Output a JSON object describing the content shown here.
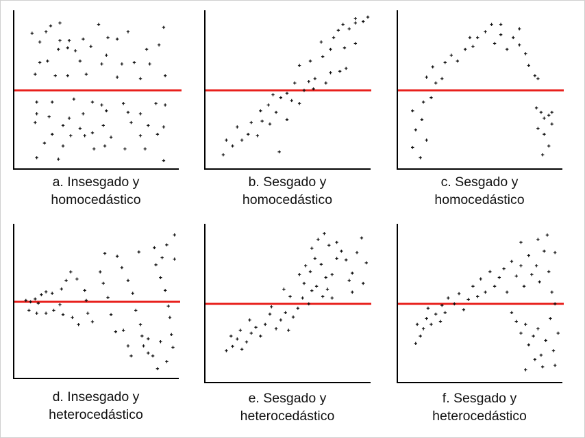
{
  "figure": {
    "background": "#ffffff",
    "axis_color": "#000000",
    "line_color": "#e8201c",
    "point_color": "#111111"
  },
  "chart_data": [
    {
      "type": "scatter",
      "caption": [
        "a. Insesgado y",
        "homocedástico"
      ],
      "reference_y": 0.5,
      "xlim": [
        0,
        1
      ],
      "ylim": [
        0,
        1
      ],
      "grid": false,
      "points": [
        [
          0.19,
          0.94
        ],
        [
          0.25,
          0.96
        ],
        [
          0.5,
          0.95
        ],
        [
          0.92,
          0.93
        ],
        [
          0.69,
          0.9
        ],
        [
          0.16,
          0.9
        ],
        [
          0.07,
          0.89
        ],
        [
          0.12,
          0.83
        ],
        [
          0.25,
          0.84
        ],
        [
          0.31,
          0.84
        ],
        [
          0.4,
          0.85
        ],
        [
          0.56,
          0.86
        ],
        [
          0.62,
          0.85
        ],
        [
          0.89,
          0.81
        ],
        [
          0.24,
          0.78
        ],
        [
          0.3,
          0.79
        ],
        [
          0.35,
          0.77
        ],
        [
          0.45,
          0.8
        ],
        [
          0.55,
          0.74
        ],
        [
          0.81,
          0.78
        ],
        [
          0.12,
          0.69
        ],
        [
          0.17,
          0.7
        ],
        [
          0.38,
          0.7
        ],
        [
          0.52,
          0.68
        ],
        [
          0.65,
          0.68
        ],
        [
          0.73,
          0.69
        ],
        [
          0.83,
          0.68
        ],
        [
          0.09,
          0.61
        ],
        [
          0.22,
          0.6
        ],
        [
          0.3,
          0.6
        ],
        [
          0.42,
          0.61
        ],
        [
          0.62,
          0.59
        ],
        [
          0.77,
          0.58
        ],
        [
          0.93,
          0.6
        ],
        [
          0.1,
          0.42
        ],
        [
          0.2,
          0.42
        ],
        [
          0.34,
          0.44
        ],
        [
          0.46,
          0.42
        ],
        [
          0.52,
          0.4
        ],
        [
          0.66,
          0.41
        ],
        [
          0.87,
          0.41
        ],
        [
          0.93,
          0.4
        ],
        [
          0.1,
          0.34
        ],
        [
          0.18,
          0.32
        ],
        [
          0.31,
          0.31
        ],
        [
          0.4,
          0.34
        ],
        [
          0.55,
          0.36
        ],
        [
          0.69,
          0.35
        ],
        [
          0.77,
          0.34
        ],
        [
          0.09,
          0.28
        ],
        [
          0.27,
          0.26
        ],
        [
          0.38,
          0.24
        ],
        [
          0.53,
          0.26
        ],
        [
          0.71,
          0.28
        ],
        [
          0.82,
          0.26
        ],
        [
          0.92,
          0.25
        ],
        [
          0.2,
          0.2
        ],
        [
          0.32,
          0.19
        ],
        [
          0.41,
          0.19
        ],
        [
          0.46,
          0.21
        ],
        [
          0.58,
          0.18
        ],
        [
          0.77,
          0.19
        ],
        [
          0.88,
          0.2
        ],
        [
          0.15,
          0.14
        ],
        [
          0.27,
          0.12
        ],
        [
          0.47,
          0.1
        ],
        [
          0.54,
          0.12
        ],
        [
          0.67,
          0.1
        ],
        [
          0.8,
          0.1
        ],
        [
          0.1,
          0.04
        ],
        [
          0.24,
          0.03
        ],
        [
          0.92,
          0.02
        ]
      ]
    },
    {
      "type": "scatter",
      "caption": [
        "b. Sesgado y",
        "homocedástico"
      ],
      "reference_y": 0.5,
      "xlim": [
        0,
        1
      ],
      "ylim": [
        0,
        1
      ],
      "grid": false,
      "points": [
        [
          0.07,
          0.06
        ],
        [
          0.13,
          0.12
        ],
        [
          0.09,
          0.16
        ],
        [
          0.19,
          0.16
        ],
        [
          0.16,
          0.25
        ],
        [
          0.23,
          0.2
        ],
        [
          0.29,
          0.19
        ],
        [
          0.25,
          0.28
        ],
        [
          0.32,
          0.29
        ],
        [
          0.37,
          0.27
        ],
        [
          0.31,
          0.36
        ],
        [
          0.36,
          0.4
        ],
        [
          0.41,
          0.35
        ],
        [
          0.44,
          0.45
        ],
        [
          0.48,
          0.3
        ],
        [
          0.39,
          0.47
        ],
        [
          0.48,
          0.48
        ],
        [
          0.51,
          0.43
        ],
        [
          0.56,
          0.41
        ],
        [
          0.59,
          0.5
        ],
        [
          0.53,
          0.55
        ],
        [
          0.62,
          0.56
        ],
        [
          0.66,
          0.58
        ],
        [
          0.65,
          0.51
        ],
        [
          0.73,
          0.55
        ],
        [
          0.76,
          0.62
        ],
        [
          0.82,
          0.63
        ],
        [
          0.86,
          0.65
        ],
        [
          0.56,
          0.67
        ],
        [
          0.63,
          0.7
        ],
        [
          0.71,
          0.73
        ],
        [
          0.76,
          0.78
        ],
        [
          0.85,
          0.79
        ],
        [
          0.92,
          0.82
        ],
        [
          0.7,
          0.83
        ],
        [
          0.78,
          0.86
        ],
        [
          0.81,
          0.91
        ],
        [
          0.88,
          0.92
        ],
        [
          0.92,
          0.96
        ],
        [
          0.97,
          0.97
        ],
        [
          0.84,
          0.95
        ],
        [
          0.92,
          0.99
        ],
        [
          1.0,
          1.0
        ],
        [
          0.43,
          0.08
        ]
      ]
    },
    {
      "type": "scatter",
      "caption": [
        "c. Sesgado y",
        "homocedástico"
      ],
      "reference_y": 0.5,
      "xlim": [
        0,
        1
      ],
      "ylim": [
        0,
        1
      ],
      "grid": false,
      "points": [
        [
          0.1,
          0.04
        ],
        [
          0.05,
          0.11
        ],
        [
          0.14,
          0.16
        ],
        [
          0.07,
          0.23
        ],
        [
          0.11,
          0.3
        ],
        [
          0.05,
          0.36
        ],
        [
          0.12,
          0.42
        ],
        [
          0.17,
          0.45
        ],
        [
          0.2,
          0.55
        ],
        [
          0.14,
          0.59
        ],
        [
          0.24,
          0.58
        ],
        [
          0.18,
          0.66
        ],
        [
          0.26,
          0.69
        ],
        [
          0.3,
          0.74
        ],
        [
          0.34,
          0.7
        ],
        [
          0.39,
          0.78
        ],
        [
          0.44,
          0.8
        ],
        [
          0.47,
          0.86
        ],
        [
          0.42,
          0.86
        ],
        [
          0.52,
          0.9
        ],
        [
          0.56,
          0.95
        ],
        [
          0.58,
          0.82
        ],
        [
          0.62,
          0.88
        ],
        [
          0.66,
          0.78
        ],
        [
          0.7,
          0.86
        ],
        [
          0.74,
          0.81
        ],
        [
          0.78,
          0.75
        ],
        [
          0.8,
          0.67
        ],
        [
          0.84,
          0.6
        ],
        [
          0.86,
          0.58
        ],
        [
          0.74,
          0.92
        ],
        [
          0.62,
          0.95
        ],
        [
          0.85,
          0.38
        ],
        [
          0.88,
          0.35
        ],
        [
          0.9,
          0.31
        ],
        [
          0.93,
          0.33
        ],
        [
          0.86,
          0.24
        ],
        [
          0.9,
          0.2
        ],
        [
          0.95,
          0.27
        ],
        [
          0.95,
          0.35
        ],
        [
          0.93,
          0.12
        ],
        [
          0.89,
          0.06
        ]
      ]
    },
    {
      "type": "scatter",
      "caption": [
        "d. Insesgado y",
        "heterocedástico"
      ],
      "reference_y": 0.5,
      "xlim": [
        0,
        1
      ],
      "ylim": [
        0,
        1
      ],
      "grid": false,
      "points": [
        [
          0.03,
          0.51
        ],
        [
          0.06,
          0.5
        ],
        [
          0.09,
          0.52
        ],
        [
          0.11,
          0.49
        ],
        [
          0.13,
          0.55
        ],
        [
          0.05,
          0.44
        ],
        [
          0.1,
          0.42
        ],
        [
          0.16,
          0.42
        ],
        [
          0.21,
          0.44
        ],
        [
          0.2,
          0.56
        ],
        [
          0.16,
          0.57
        ],
        [
          0.25,
          0.48
        ],
        [
          0.27,
          0.41
        ],
        [
          0.26,
          0.59
        ],
        [
          0.29,
          0.65
        ],
        [
          0.32,
          0.71
        ],
        [
          0.36,
          0.66
        ],
        [
          0.41,
          0.58
        ],
        [
          0.42,
          0.51
        ],
        [
          0.33,
          0.39
        ],
        [
          0.37,
          0.34
        ],
        [
          0.43,
          0.42
        ],
        [
          0.46,
          0.36
        ],
        [
          0.51,
          0.71
        ],
        [
          0.53,
          0.63
        ],
        [
          0.56,
          0.53
        ],
        [
          0.58,
          0.41
        ],
        [
          0.61,
          0.29
        ],
        [
          0.54,
          0.84
        ],
        [
          0.62,
          0.82
        ],
        [
          0.65,
          0.74
        ],
        [
          0.69,
          0.65
        ],
        [
          0.72,
          0.56
        ],
        [
          0.74,
          0.44
        ],
        [
          0.77,
          0.34
        ],
        [
          0.78,
          0.26
        ],
        [
          0.79,
          0.19
        ],
        [
          0.82,
          0.14
        ],
        [
          0.85,
          0.12
        ],
        [
          0.86,
          0.88
        ],
        [
          0.87,
          0.76
        ],
        [
          0.9,
          0.67
        ],
        [
          0.93,
          0.58
        ],
        [
          0.95,
          0.47
        ],
        [
          0.96,
          0.39
        ],
        [
          0.97,
          0.27
        ],
        [
          0.98,
          0.18
        ],
        [
          0.94,
          0.9
        ],
        [
          0.99,
          0.97
        ],
        [
          0.91,
          0.81
        ],
        [
          0.99,
          0.8
        ],
        [
          0.69,
          0.19
        ],
        [
          0.71,
          0.12
        ],
        [
          0.82,
          0.24
        ],
        [
          0.9,
          0.22
        ],
        [
          0.94,
          0.08
        ],
        [
          0.88,
          0.03
        ],
        [
          0.66,
          0.3
        ],
        [
          0.76,
          0.85
        ]
      ]
    },
    {
      "type": "scatter",
      "caption": [
        "e. Sesgado y",
        "heterocedástico"
      ],
      "reference_y": 0.5,
      "xlim": [
        0,
        1
      ],
      "ylim": [
        0,
        1
      ],
      "grid": false,
      "points": [
        [
          0.09,
          0.18
        ],
        [
          0.13,
          0.21
        ],
        [
          0.16,
          0.26
        ],
        [
          0.19,
          0.19
        ],
        [
          0.22,
          0.24
        ],
        [
          0.12,
          0.28
        ],
        [
          0.25,
          0.3
        ],
        [
          0.18,
          0.32
        ],
        [
          0.28,
          0.34
        ],
        [
          0.31,
          0.28
        ],
        [
          0.34,
          0.36
        ],
        [
          0.24,
          0.39
        ],
        [
          0.37,
          0.43
        ],
        [
          0.41,
          0.33
        ],
        [
          0.44,
          0.39
        ],
        [
          0.47,
          0.44
        ],
        [
          0.38,
          0.48
        ],
        [
          0.49,
          0.32
        ],
        [
          0.52,
          0.41
        ],
        [
          0.55,
          0.47
        ],
        [
          0.58,
          0.54
        ],
        [
          0.62,
          0.5
        ],
        [
          0.5,
          0.55
        ],
        [
          0.46,
          0.6
        ],
        [
          0.59,
          0.64
        ],
        [
          0.64,
          0.59
        ],
        [
          0.67,
          0.62
        ],
        [
          0.71,
          0.55
        ],
        [
          0.74,
          0.6
        ],
        [
          0.77,
          0.54
        ],
        [
          0.56,
          0.7
        ],
        [
          0.6,
          0.76
        ],
        [
          0.63,
          0.72
        ],
        [
          0.66,
          0.81
        ],
        [
          0.7,
          0.77
        ],
        [
          0.73,
          0.68
        ],
        [
          0.77,
          0.7
        ],
        [
          0.8,
          0.81
        ],
        [
          0.64,
          0.88
        ],
        [
          0.68,
          0.94
        ],
        [
          0.75,
          0.9
        ],
        [
          0.8,
          0.92
        ],
        [
          0.83,
          0.86
        ],
        [
          0.86,
          0.8
        ],
        [
          0.88,
          0.66
        ],
        [
          0.9,
          0.71
        ],
        [
          0.93,
          0.85
        ],
        [
          0.96,
          0.95
        ],
        [
          0.99,
          0.78
        ],
        [
          0.97,
          0.64
        ],
        [
          0.9,
          0.58
        ],
        [
          0.72,
          0.98
        ]
      ]
    },
    {
      "type": "scatter",
      "caption": [
        "f. Sesgado y",
        "heterocedástico"
      ],
      "reference_y": 0.5,
      "xlim": [
        0,
        1
      ],
      "ylim": [
        0,
        1
      ],
      "grid": false,
      "points": [
        [
          0.07,
          0.23
        ],
        [
          0.1,
          0.28
        ],
        [
          0.12,
          0.33
        ],
        [
          0.08,
          0.36
        ],
        [
          0.14,
          0.4
        ],
        [
          0.17,
          0.36
        ],
        [
          0.2,
          0.43
        ],
        [
          0.23,
          0.38
        ],
        [
          0.15,
          0.47
        ],
        [
          0.24,
          0.49
        ],
        [
          0.26,
          0.44
        ],
        [
          0.28,
          0.54
        ],
        [
          0.32,
          0.5
        ],
        [
          0.35,
          0.57
        ],
        [
          0.38,
          0.46
        ],
        [
          0.41,
          0.53
        ],
        [
          0.44,
          0.62
        ],
        [
          0.47,
          0.55
        ],
        [
          0.49,
          0.67
        ],
        [
          0.52,
          0.58
        ],
        [
          0.55,
          0.72
        ],
        [
          0.58,
          0.62
        ],
        [
          0.61,
          0.68
        ],
        [
          0.64,
          0.74
        ],
        [
          0.66,
          0.58
        ],
        [
          0.69,
          0.79
        ],
        [
          0.72,
          0.69
        ],
        [
          0.75,
          0.76
        ],
        [
          0.77,
          0.62
        ],
        [
          0.8,
          0.83
        ],
        [
          0.82,
          0.7
        ],
        [
          0.85,
          0.76
        ],
        [
          0.87,
          0.65
        ],
        [
          0.9,
          0.86
        ],
        [
          0.93,
          0.72
        ],
        [
          0.95,
          0.58
        ],
        [
          0.97,
          0.5
        ],
        [
          0.75,
          0.92
        ],
        [
          0.86,
          0.94
        ],
        [
          0.92,
          0.97
        ],
        [
          0.97,
          0.85
        ],
        [
          0.69,
          0.44
        ],
        [
          0.72,
          0.38
        ],
        [
          0.75,
          0.3
        ],
        [
          0.78,
          0.36
        ],
        [
          0.8,
          0.22
        ],
        [
          0.83,
          0.28
        ],
        [
          0.86,
          0.33
        ],
        [
          0.88,
          0.15
        ],
        [
          0.91,
          0.25
        ],
        [
          0.94,
          0.4
        ],
        [
          0.96,
          0.18
        ],
        [
          0.99,
          0.3
        ],
        [
          0.97,
          0.08
        ],
        [
          0.89,
          0.07
        ],
        [
          0.84,
          0.12
        ],
        [
          0.78,
          0.05
        ]
      ]
    }
  ]
}
